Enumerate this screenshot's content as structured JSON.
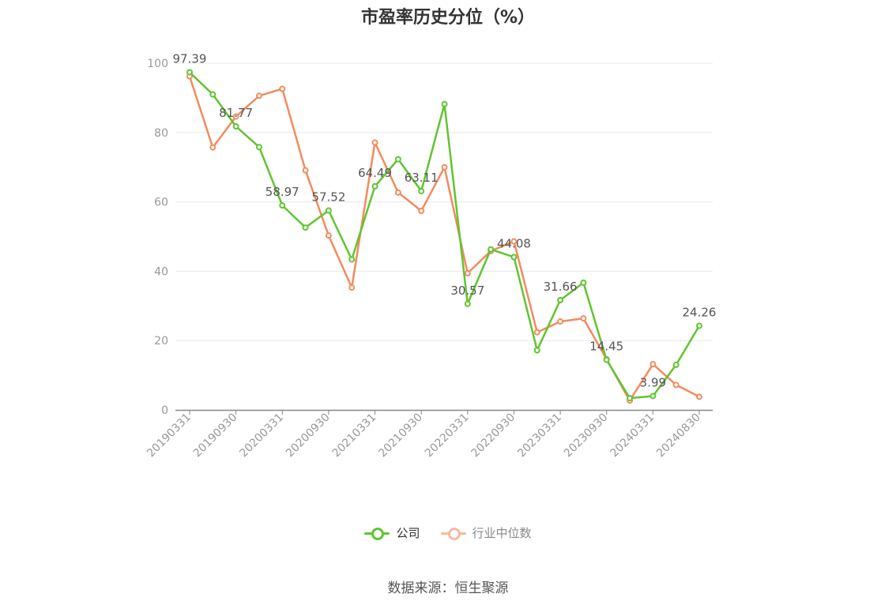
{
  "title": "市盈率历史分位（%）",
  "source": "数据来源：恒生聚源",
  "legend": [
    {
      "label": "公司",
      "color": "#5fc52f"
    },
    {
      "label": "行业中位数",
      "color": "#f28b5e"
    }
  ],
  "chart_data": {
    "type": "line",
    "ylim": [
      0,
      100
    ],
    "yticks": [
      0,
      20,
      40,
      60,
      80,
      100
    ],
    "grid": true,
    "legend_position": "bottom",
    "xtick_labels": [
      "20190331",
      "20190930",
      "20200331",
      "20200930",
      "20210331",
      "20210930",
      "20220331",
      "20220930",
      "20230331",
      "20230930",
      "20240331",
      "20240830"
    ],
    "x": [
      "20190331",
      "20190630",
      "20190930",
      "20191231",
      "20200331",
      "20200630",
      "20200930",
      "20201231",
      "20210331",
      "20210630",
      "20210930",
      "20211231",
      "20220331",
      "20220630",
      "20220930",
      "20221231",
      "20230331",
      "20230630",
      "20230930",
      "20231231",
      "20240331",
      "20240630",
      "20240830"
    ],
    "series": [
      {
        "name": "公司",
        "color": "#5fc52f",
        "values": [
          97.39,
          91.0,
          81.77,
          75.8,
          58.97,
          52.6,
          57.52,
          43.4,
          64.49,
          72.3,
          63.11,
          88.2,
          30.57,
          46.3,
          44.08,
          17.2,
          31.66,
          36.7,
          14.45,
          3.4,
          3.99,
          13.0,
          24.26
        ]
      },
      {
        "name": "行业中位数",
        "color": "#f28b5e",
        "values": [
          96.2,
          75.7,
          84.6,
          90.6,
          92.6,
          69.1,
          50.3,
          35.3,
          77.1,
          62.7,
          57.4,
          70.0,
          39.4,
          45.8,
          48.6,
          22.4,
          25.5,
          26.4,
          14.6,
          2.7,
          13.2,
          7.2,
          3.8
        ]
      }
    ],
    "data_labels": [
      {
        "series": "公司",
        "x": "20190331",
        "text": "97.39"
      },
      {
        "series": "公司",
        "x": "20190930",
        "text": "81.77"
      },
      {
        "series": "公司",
        "x": "20200331",
        "text": "58.97"
      },
      {
        "series": "公司",
        "x": "20200930",
        "text": "57.52"
      },
      {
        "series": "公司",
        "x": "20210331",
        "text": "64.49"
      },
      {
        "series": "公司",
        "x": "20210930",
        "text": "63.11"
      },
      {
        "series": "公司",
        "x": "20220331",
        "text": "30.57"
      },
      {
        "series": "公司",
        "x": "20220930",
        "text": "44.08"
      },
      {
        "series": "公司",
        "x": "20230331",
        "text": "31.66"
      },
      {
        "series": "公司",
        "x": "20230930",
        "text": "14.45"
      },
      {
        "series": "公司",
        "x": "20240331",
        "text": "3.99"
      },
      {
        "series": "公司",
        "x": "20240830",
        "text": "24.26"
      }
    ]
  }
}
